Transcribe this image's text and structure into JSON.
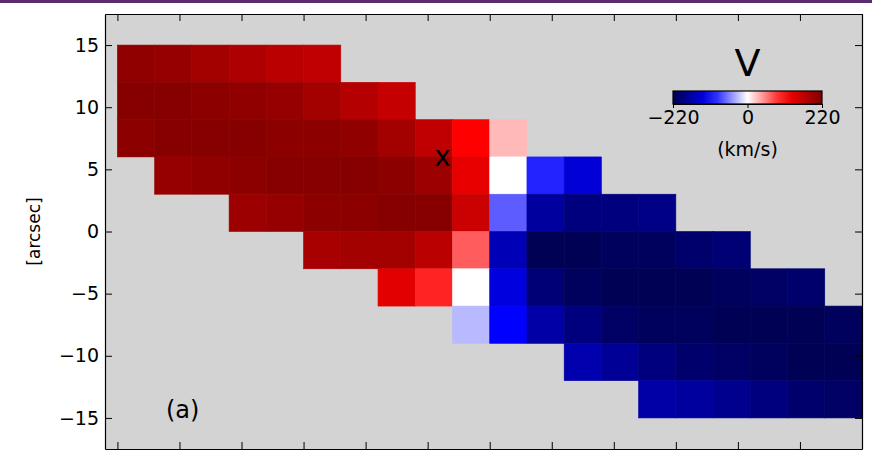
{
  "chart_data": {
    "type": "heatmap",
    "ylabel": "[arcsec]",
    "panel_label": "(a)",
    "xlim": [
      -31,
      30
    ],
    "ylim": [
      -17.5,
      17.5
    ],
    "xticks": [
      -30,
      -25,
      -20,
      -15,
      -10,
      -5,
      0,
      5,
      10,
      15,
      20,
      25,
      30
    ],
    "yticks": [
      {
        "value": -15,
        "label": "−15"
      },
      {
        "value": -10,
        "label": "−10"
      },
      {
        "value": -5,
        "label": "−5"
      },
      0,
      5,
      10,
      15
    ],
    "tick_labels": "y",
    "x": [
      -28.5,
      -25.5,
      -22.5,
      -19.5,
      -16.5,
      -13.5,
      -10.5,
      -7.5,
      -4.5,
      -1.5,
      1.5,
      4.5,
      7.5,
      10.5,
      13.5,
      16.5,
      19.5,
      22.5,
      25.5,
      28.5
    ],
    "y": [
      13.5,
      10.5,
      7.5,
      4.5,
      1.5,
      -1.5,
      -4.5,
      -7.5,
      -10.5,
      -13.5
    ],
    "values": [
      [
        205,
        200,
        190,
        180,
        170,
        165,
        null,
        null,
        null,
        null,
        null,
        null,
        null,
        null,
        null,
        null,
        null,
        null,
        null,
        null
      ],
      [
        215,
        215,
        210,
        205,
        200,
        190,
        175,
        160,
        null,
        null,
        null,
        null,
        null,
        null,
        null,
        null,
        null,
        null,
        null,
        null
      ],
      [
        210,
        215,
        215,
        215,
        210,
        210,
        205,
        190,
        165,
        110,
        30,
        null,
        null,
        null,
        null,
        null,
        null,
        null,
        null,
        null
      ],
      [
        null,
        200,
        205,
        210,
        215,
        215,
        215,
        210,
        195,
        130,
        0,
        -95,
        -135,
        null,
        null,
        null,
        null,
        null,
        null,
        null
      ],
      [
        null,
        null,
        null,
        195,
        200,
        210,
        210,
        215,
        215,
        155,
        -70,
        -170,
        -190,
        -190,
        -185,
        null,
        null,
        null,
        null,
        null
      ],
      [
        null,
        null,
        null,
        null,
        null,
        185,
        190,
        190,
        170,
        70,
        -155,
        -215,
        -215,
        -210,
        -210,
        -200,
        -195,
        null,
        null,
        null
      ],
      [
        null,
        null,
        null,
        null,
        null,
        null,
        null,
        135,
        95,
        0,
        -130,
        -195,
        -210,
        -215,
        -215,
        -215,
        -210,
        -205,
        -200,
        null
      ],
      [
        null,
        null,
        null,
        null,
        null,
        null,
        null,
        null,
        null,
        -30,
        -110,
        -165,
        -190,
        -205,
        -210,
        -210,
        -215,
        -215,
        -215,
        -210
      ],
      [
        null,
        null,
        null,
        null,
        null,
        null,
        null,
        null,
        null,
        null,
        null,
        null,
        -160,
        -175,
        -190,
        -200,
        -205,
        -210,
        -215,
        -215
      ],
      [
        null,
        null,
        null,
        null,
        null,
        null,
        null,
        null,
        null,
        null,
        null,
        null,
        null,
        null,
        -165,
        -170,
        -180,
        -190,
        -200,
        -205
      ]
    ],
    "colorbar": {
      "title": "V",
      "label": "(km/s)",
      "lim": [
        -220,
        220
      ],
      "ticks": [
        {
          "value": -220,
          "label": "−220"
        },
        0,
        220
      ]
    },
    "annotations": [
      {
        "text": "x",
        "x": -3.8,
        "y": 6
      }
    ]
  }
}
